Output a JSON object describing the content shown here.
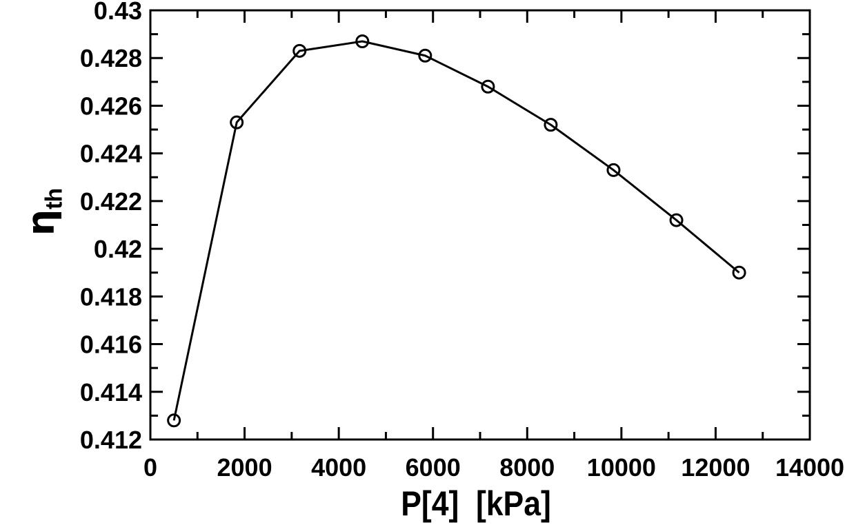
{
  "page": {
    "background": "#ffffff",
    "foreground": "#000000"
  },
  "chart_data": {
    "type": "line",
    "title": "",
    "xlabel": "P[4]  [kPa]",
    "ylabel": "η_th",
    "ylabel_main": "η",
    "ylabel_sub": "th",
    "series": [
      {
        "name": "eta_th",
        "marker": "open-circle",
        "color": "#000000",
        "x": [
          500,
          1833,
          3167,
          4500,
          5833,
          7167,
          8500,
          9833,
          11167,
          12500
        ],
        "y": [
          0.4128,
          0.4253,
          0.4283,
          0.4287,
          0.4281,
          0.4268,
          0.4252,
          0.4233,
          0.4212,
          0.419
        ]
      }
    ],
    "xlim": [
      0,
      14000
    ],
    "ylim": [
      0.412,
      0.43
    ],
    "x_major_ticks": [
      0,
      2000,
      4000,
      6000,
      8000,
      10000,
      12000,
      14000
    ],
    "x_tick_labels": [
      "0",
      "2000",
      "4000",
      "6000",
      "8000",
      "10000",
      "12000",
      "14000"
    ],
    "x_minor_step": 1000,
    "y_major_ticks": [
      0.412,
      0.414,
      0.416,
      0.418,
      0.42,
      0.422,
      0.424,
      0.426,
      0.428,
      0.43
    ],
    "y_tick_labels": [
      "0.412",
      "0.414",
      "0.416",
      "0.418",
      "0.42",
      "0.422",
      "0.424",
      "0.426",
      "0.428",
      "0.43"
    ],
    "y_minor_step": 0.001,
    "grid": false,
    "legend": null,
    "axis_color": "#000000",
    "background": "#ffffff"
  }
}
